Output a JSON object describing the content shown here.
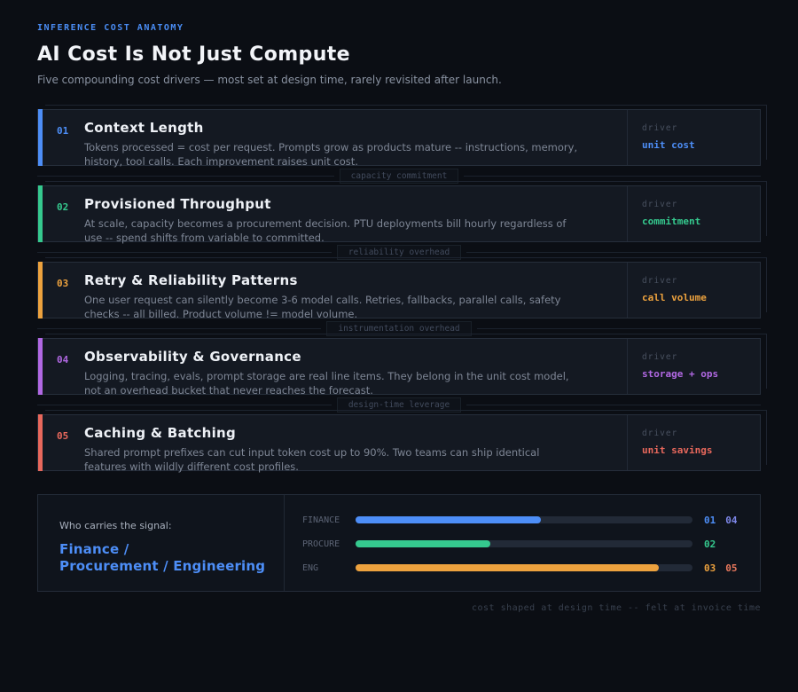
{
  "page": {
    "eyebrow": "INFERENCE COST ANATOMY",
    "title": "AI Cost Is Not Just Compute",
    "subtitle": "Five compounding cost drivers — most set at design time, rarely revisited after launch.",
    "footer": "cost shaped at design time -- felt at invoice time"
  },
  "colors": {
    "blue": "#4d8ef7",
    "green": "#35c98e",
    "orange": "#eda23e",
    "purple": "#b168e3",
    "red": "#e8685c"
  },
  "cards": [
    {
      "num": "01",
      "title": "Context Length",
      "desc": "Tokens processed = cost per request. Prompts grow as products mature -- instructions, memory, history, tool calls. Each improvement raises unit cost.",
      "driver_label": "driver",
      "driver_value": "unit cost",
      "accent": "#4d8ef7",
      "connector": "capacity commitment"
    },
    {
      "num": "02",
      "title": "Provisioned Throughput",
      "desc": "At scale, capacity becomes a procurement decision. PTU deployments bill hourly regardless of use -- spend shifts from variable to committed.",
      "driver_label": "driver",
      "driver_value": "commitment",
      "accent": "#35c98e",
      "connector": "reliability overhead"
    },
    {
      "num": "03",
      "title": "Retry & Reliability Patterns",
      "desc": "One user request can silently become 3-6 model calls. Retries, fallbacks, parallel calls, safety checks -- all billed. Product volume != model volume.",
      "driver_label": "driver",
      "driver_value": "call volume",
      "accent": "#eda23e",
      "connector": "instrumentation overhead"
    },
    {
      "num": "04",
      "title": "Observability & Governance",
      "desc": "Logging, tracing, evals, prompt storage are real line items. They belong in the unit cost model, not an overhead bucket that never reaches the forecast.",
      "driver_label": "driver",
      "driver_value": "storage + ops",
      "accent": "#b168e3",
      "connector": "design-time leverage"
    },
    {
      "num": "05",
      "title": "Caching & Batching",
      "desc": "Shared prompt prefixes can cut input token cost up to 90%. Two teams can ship identical features with wildly different cost profiles.",
      "driver_label": "driver",
      "driver_value": "unit savings",
      "accent": "#e8685c",
      "connector": null
    }
  ],
  "signal_panel": {
    "label": "Who carries the signal:",
    "value_line1": "Finance /",
    "value_line2": "Procurement / Engineering",
    "rows": [
      {
        "label": "FINANCE",
        "pct": 55,
        "color": "#4d8ef7",
        "tags": [
          {
            "text": "01",
            "color": "#4d8ef7"
          },
          {
            "text": "04",
            "color": "#7d87e8"
          }
        ]
      },
      {
        "label": "PROCURE",
        "pct": 40,
        "color": "#35c98e",
        "tags": [
          {
            "text": "02",
            "color": "#35c98e"
          }
        ]
      },
      {
        "label": "ENG",
        "pct": 90,
        "color": "#eda23e",
        "tags": [
          {
            "text": "03",
            "color": "#eda23e"
          },
          {
            "text": "05",
            "color": "#e8785c"
          }
        ]
      }
    ]
  }
}
